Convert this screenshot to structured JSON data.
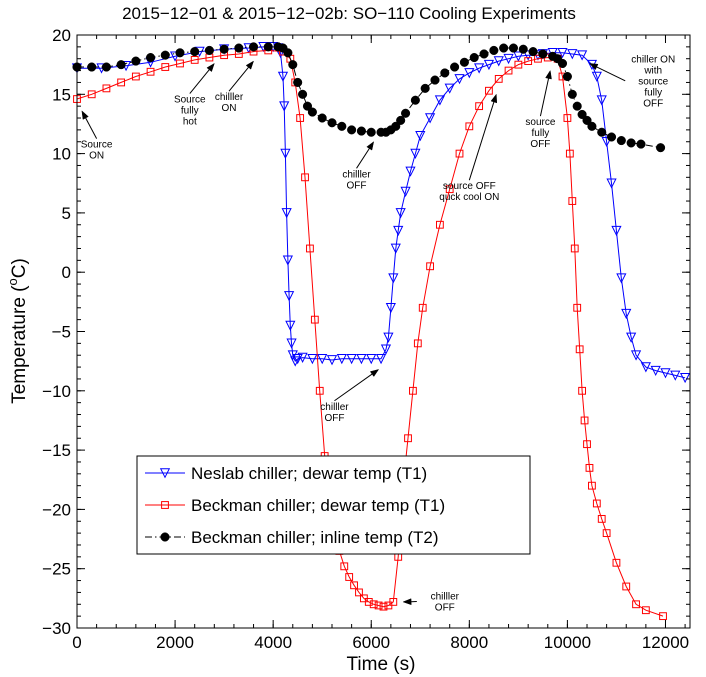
{
  "chart_data": {
    "type": "line",
    "title": "2015−12−01 & 2015−12−02b: SO−110 Cooling Experiments",
    "xlabel": "Time (s)",
    "ylabel_prefix": "Temperature (",
    "ylabel_sup": "o",
    "ylabel_suffix": "C)",
    "xlim": [
      0,
      12500
    ],
    "ylim": [
      -30,
      20
    ],
    "xticks": [
      0,
      2000,
      4000,
      6000,
      8000,
      10000,
      12000
    ],
    "yticks": [
      -30,
      -25,
      -20,
      -15,
      -10,
      -5,
      0,
      5,
      10,
      15,
      20
    ],
    "grid": false,
    "legend_position": "bottom-left",
    "series": [
      {
        "name": "Neslab chiller; dewar temp (T1)",
        "color": "#0000ff",
        "marker": "triangle-down",
        "line": "solid",
        "x": [
          0,
          500,
          1000,
          1500,
          2000,
          2500,
          3000,
          3500,
          3800,
          4000,
          4100,
          4150,
          4200,
          4225,
          4250,
          4275,
          4300,
          4325,
          4350,
          4375,
          4400,
          4450,
          4500,
          4600,
          4800,
          5000,
          5200,
          5400,
          5600,
          5800,
          6000,
          6200,
          6300,
          6350,
          6400,
          6450,
          6500,
          6550,
          6600,
          6700,
          6800,
          6900,
          7000,
          7200,
          7400,
          7600,
          7800,
          8000,
          8200,
          8400,
          8600,
          8800,
          9000,
          9200,
          9400,
          9500,
          9700,
          9900,
          10100,
          10300,
          10500,
          10600,
          10700,
          10800,
          10900,
          11000,
          11100,
          11200,
          11300,
          11400,
          11600,
          11800,
          12000,
          12200,
          12400
        ],
        "y": [
          17.2,
          17.2,
          17.4,
          17.7,
          18.2,
          18.6,
          18.8,
          18.9,
          19.0,
          19.0,
          18.9,
          18.5,
          16.5,
          14.0,
          10.0,
          5.0,
          1.0,
          -2.0,
          -4.5,
          -6.0,
          -7.0,
          -7.5,
          -7.3,
          -7.2,
          -7.3,
          -7.3,
          -7.4,
          -7.3,
          -7.3,
          -7.3,
          -7.3,
          -7.3,
          -6.5,
          -5.5,
          -3.0,
          -0.5,
          2.0,
          3.5,
          5.0,
          6.8,
          8.5,
          10.0,
          11.5,
          13.0,
          14.5,
          15.5,
          16.3,
          16.8,
          17.2,
          17.5,
          17.8,
          18.0,
          18.2,
          18.3,
          18.3,
          18.4,
          18.5,
          18.5,
          18.4,
          18.3,
          17.5,
          16.5,
          14.5,
          11.0,
          7.5,
          3.5,
          -0.5,
          -3.5,
          -5.5,
          -7.0,
          -8.0,
          -8.3,
          -8.5,
          -8.7,
          -8.9
        ]
      },
      {
        "name": "Beckman chiller; dewar temp (T1)",
        "color": "#ff0000",
        "marker": "square",
        "line": "solid",
        "x": [
          0,
          300,
          600,
          900,
          1200,
          1500,
          1800,
          2100,
          2400,
          2700,
          3000,
          3300,
          3600,
          3900,
          4200,
          4350,
          4450,
          4550,
          4650,
          4750,
          4850,
          4950,
          5050,
          5150,
          5250,
          5350,
          5450,
          5550,
          5650,
          5750,
          5850,
          5950,
          6050,
          6150,
          6250,
          6350,
          6450,
          6550,
          6650,
          6750,
          6850,
          6950,
          7050,
          7200,
          7400,
          7600,
          7800,
          8000,
          8200,
          8400,
          8600,
          8800,
          9000,
          9200,
          9400,
          9600,
          9800,
          9900,
          10000,
          10050,
          10100,
          10150,
          10200,
          10250,
          10300,
          10350,
          10400,
          10450,
          10500,
          10600,
          10700,
          10800,
          11000,
          11200,
          11400,
          11600,
          11950
        ],
        "y": [
          14.6,
          15.0,
          15.5,
          16.0,
          16.5,
          16.9,
          17.3,
          17.6,
          17.9,
          18.1,
          18.3,
          18.4,
          18.6,
          18.7,
          18.6,
          18.0,
          16.0,
          13.0,
          8.0,
          2.0,
          -4.0,
          -10.0,
          -15.5,
          -19.0,
          -21.5,
          -23.5,
          -24.8,
          -25.7,
          -26.4,
          -27.0,
          -27.5,
          -27.8,
          -28.0,
          -28.1,
          -28.2,
          -28.1,
          -27.8,
          -24.0,
          -18.0,
          -14.0,
          -10.0,
          -6.0,
          -3.0,
          0.5,
          4.0,
          7.0,
          10.0,
          12.3,
          14.0,
          15.3,
          16.3,
          17.0,
          17.5,
          17.8,
          18.0,
          18.1,
          18.0,
          16.5,
          13.0,
          10.0,
          6.0,
          2.0,
          -3.0,
          -6.5,
          -10.0,
          -12.5,
          -14.5,
          -16.5,
          -18.0,
          -19.5,
          -20.8,
          -22.0,
          -24.5,
          -26.5,
          -28.0,
          -28.5,
          -29.0
        ]
      },
      {
        "name": "Beckman chiller; inline temp (T2)",
        "color": "#000000",
        "marker": "circle",
        "line": "dash-dot",
        "x": [
          0,
          300,
          600,
          900,
          1200,
          1500,
          1800,
          2100,
          2400,
          2700,
          3000,
          3300,
          3600,
          3900,
          4100,
          4200,
          4300,
          4400,
          4500,
          4600,
          4700,
          4800,
          5000,
          5200,
          5400,
          5600,
          5800,
          6000,
          6200,
          6300,
          6400,
          6500,
          6600,
          6700,
          6900,
          7100,
          7300,
          7500,
          7700,
          7900,
          8100,
          8300,
          8500,
          8700,
          8900,
          9100,
          9300,
          9500,
          9700,
          9800,
          9900,
          10000,
          10100,
          10200,
          10300,
          10400,
          10500,
          10700,
          10900,
          11100,
          11300,
          11500,
          11900
        ],
        "y": [
          17.3,
          17.3,
          17.3,
          17.5,
          17.8,
          18.1,
          18.3,
          18.5,
          18.6,
          18.7,
          18.8,
          18.9,
          19.0,
          19.0,
          19.0,
          18.9,
          18.5,
          17.5,
          16.0,
          15.0,
          14.0,
          13.5,
          13.0,
          12.6,
          12.3,
          12.0,
          11.9,
          11.8,
          11.8,
          11.8,
          12.0,
          12.3,
          12.8,
          13.4,
          14.5,
          15.5,
          16.2,
          16.8,
          17.3,
          17.7,
          18.1,
          18.4,
          18.7,
          18.9,
          18.9,
          18.8,
          18.6,
          18.4,
          18.2,
          18.0,
          17.6,
          16.5,
          15.0,
          14.0,
          13.3,
          12.8,
          12.3,
          11.8,
          11.4,
          11.1,
          10.9,
          10.8,
          10.5
        ]
      }
    ],
    "annotations": [
      {
        "lines": [
          "Source",
          "ON"
        ],
        "tx": 400,
        "ty": 10.5,
        "ax": 100,
        "ay": 13.6
      },
      {
        "lines": [
          "Source",
          "fully",
          "hot"
        ],
        "tx": 2300,
        "ty": 14.3,
        "ax": 2800,
        "ay": 17.6
      },
      {
        "lines": [
          "chilller",
          "ON"
        ],
        "tx": 3100,
        "ty": 14.5,
        "ax": 3600,
        "ay": 17.8
      },
      {
        "lines": [
          "chilller",
          "OFF"
        ],
        "tx": 5700,
        "ty": 8.0,
        "ax": 6050,
        "ay": 11.0
      },
      {
        "lines": [
          "chilller",
          "OFF"
        ],
        "tx": 5250,
        "ty": -11.6,
        "ax": 6150,
        "ay": -8.2
      },
      {
        "lines": [
          "chilller",
          "OFF"
        ],
        "tx": 7500,
        "ty": -27.6,
        "ax": 6650,
        "ay": -27.8
      },
      {
        "lines": [
          "source OFF",
          "quck cool ON"
        ],
        "tx": 8000,
        "ty": 7.0,
        "ax": 8550,
        "ay": 15.0
      },
      {
        "lines": [
          "source",
          "fully",
          "OFF"
        ],
        "tx": 9450,
        "ty": 12.4,
        "ax": 9650,
        "ay": 17.0
      },
      {
        "lines": [
          "chiller ON",
          "with",
          "source",
          "fully",
          "OFF"
        ],
        "tx": 11750,
        "ty": 17.7,
        "ax": 10450,
        "ay": 17.6
      }
    ]
  }
}
